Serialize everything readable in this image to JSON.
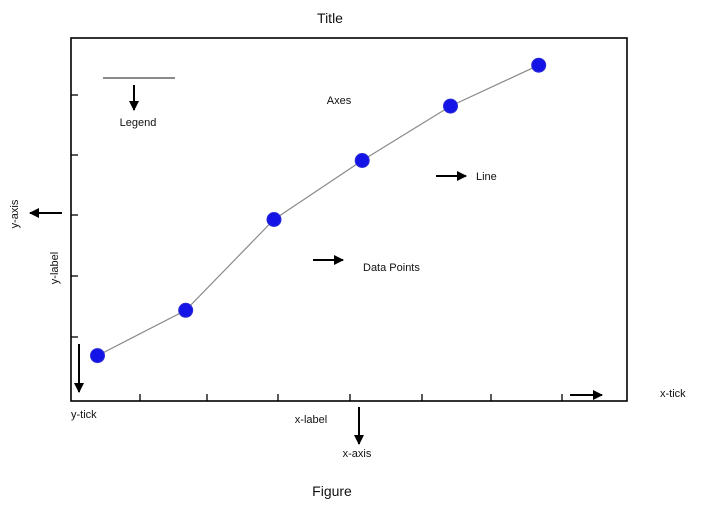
{
  "labels": {
    "title": "Title",
    "figure": "Figure",
    "axes": "Axes",
    "legend": "Legend",
    "line": "Line",
    "data_points": "Data Points",
    "y_axis": "y-axis",
    "y_label": "y-label",
    "y_tick": "y-tick",
    "x_label": "x-label",
    "x_axis": "x-axis",
    "x_tick": "x-tick"
  },
  "colors": {
    "marker": "#1414e6",
    "marker_edge": "#2b2bd8",
    "line": "#8a8a8a",
    "frame": "#000000",
    "arrow": "#000000"
  },
  "chart_data": {
    "type": "line",
    "series": [
      {
        "x": [
          1,
          2,
          3,
          4,
          5,
          6
        ],
        "y": [
          1,
          2,
          4,
          5.3,
          6.5,
          7.4
        ]
      }
    ],
    "xlim": [
      0.7,
      7
    ],
    "ylim": [
      0,
      8
    ],
    "title": "Title",
    "xlabel": "x-label",
    "ylabel": "y-label",
    "grid": false
  }
}
